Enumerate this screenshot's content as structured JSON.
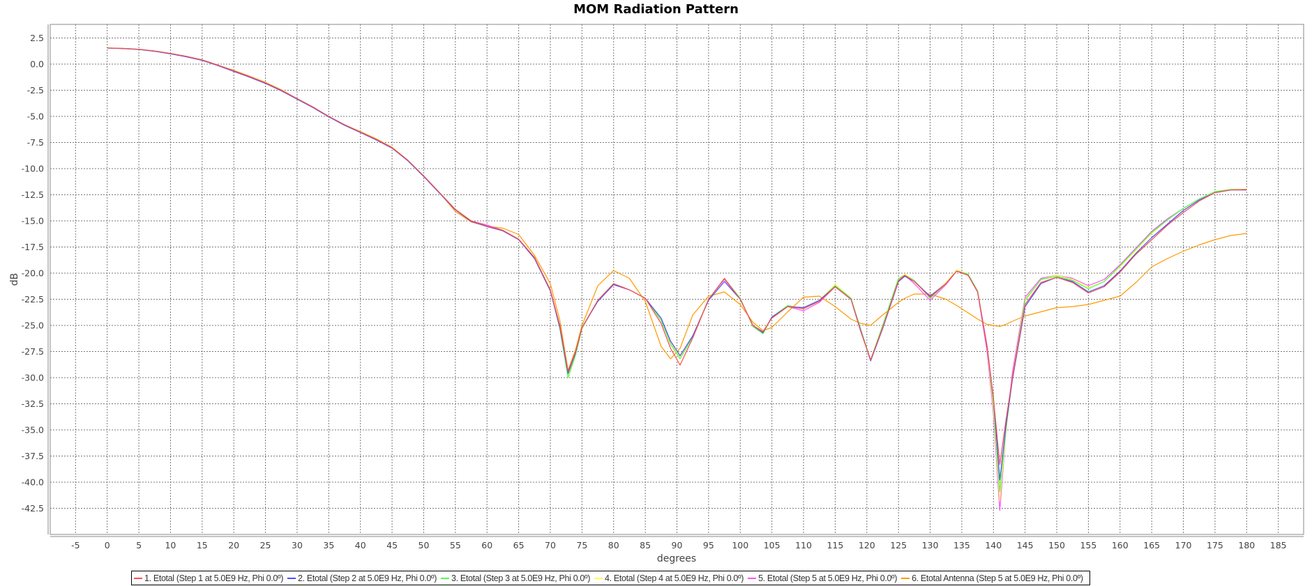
{
  "chart_data": {
    "type": "line",
    "title": "MOM Radiation Pattern",
    "xlabel": "degrees",
    "ylabel": "dB",
    "xlim": [
      -9,
      189
    ],
    "ylim": [
      -45,
      3.8
    ],
    "xticks": [
      -5,
      0,
      5,
      10,
      15,
      20,
      25,
      30,
      35,
      40,
      45,
      50,
      55,
      60,
      65,
      70,
      75,
      80,
      85,
      90,
      95,
      100,
      105,
      110,
      115,
      120,
      125,
      130,
      135,
      140,
      145,
      150,
      155,
      160,
      165,
      170,
      175,
      180,
      185
    ],
    "yticks": [
      "2.5",
      "0.0",
      "-2.5",
      "-5.0",
      "-7.5",
      "-10.0",
      "-12.5",
      "-15.0",
      "-17.5",
      "-20.0",
      "-22.5",
      "-25.0",
      "-27.5",
      "-30.0",
      "-32.5",
      "-35.0",
      "-37.5",
      "-40.0",
      "-42.5"
    ],
    "grid": true,
    "legend_position": "bottom",
    "x": [
      0,
      2.5,
      5,
      7.5,
      10,
      12.5,
      15,
      17.5,
      20,
      22.5,
      25,
      27.5,
      30,
      32.5,
      35,
      37.5,
      40,
      42.5,
      45,
      47.5,
      50,
      52.5,
      55,
      57.5,
      60,
      62.5,
      65,
      67.5,
      70,
      71.5,
      72.8,
      74,
      75,
      77.5,
      80,
      82.5,
      85,
      87.5,
      89,
      90.5,
      92.5,
      95,
      97.5,
      100,
      102,
      103.6,
      105,
      107.5,
      110,
      112.5,
      115,
      117.5,
      119,
      120.6,
      122.5,
      125,
      126,
      127.5,
      130,
      132.5,
      134.2,
      136,
      137.5,
      139,
      140,
      141,
      142,
      143,
      145,
      147.5,
      150,
      152.5,
      155,
      157.5,
      160,
      162.5,
      165,
      167.5,
      170,
      172.5,
      175,
      177.5,
      180
    ],
    "series": [
      {
        "name": "1. Etotal (Step 1 at 5.0E9 Hz, Phi 0.0º)",
        "color": "#ff4c4c",
        "values": [
          1.55,
          1.5,
          1.42,
          1.25,
          1.02,
          0.75,
          0.4,
          -0.1,
          -0.65,
          -1.2,
          -1.8,
          -2.5,
          -3.3,
          -4.1,
          -5.0,
          -5.8,
          -6.5,
          -7.2,
          -8.0,
          -9.2,
          -10.7,
          -12.3,
          -13.9,
          -15.0,
          -15.5,
          -15.9,
          -16.75,
          -18.5,
          -21.6,
          -25,
          -29.4,
          -27.5,
          -25.2,
          -22.6,
          -21.0,
          -21.6,
          -22.4,
          -24.8,
          -27.2,
          -28.8,
          -26.2,
          -22.5,
          -20.5,
          -22.5,
          -25,
          -25.6,
          -24.3,
          -23.2,
          -23.4,
          -22.7,
          -21.3,
          -22.5,
          -25.5,
          -28.3,
          -25.2,
          -20.7,
          -20.2,
          -20.8,
          -22.3,
          -21,
          -19.8,
          -20.2,
          -21.8,
          -27,
          -32,
          -38.3,
          -34,
          -30,
          -23,
          -20.9,
          -20.4,
          -20.9,
          -21.9,
          -21.3,
          -19.9,
          -18.2,
          -16.8,
          -15.4,
          -14.2,
          -13.1,
          -12.3,
          -12.05,
          -12.0
        ]
      },
      {
        "name": "2. Etotal (Step 2 at 5.0E9 Hz, Phi 0.0º)",
        "color": "#4c4cff",
        "values": [
          1.53,
          1.48,
          1.4,
          1.22,
          0.98,
          0.7,
          0.35,
          -0.15,
          -0.7,
          -1.25,
          -1.85,
          -2.55,
          -3.35,
          -4.15,
          -5.05,
          -5.85,
          -6.55,
          -7.25,
          -8.05,
          -9.25,
          -10.75,
          -12.35,
          -13.95,
          -15.05,
          -15.55,
          -15.95,
          -16.8,
          -18.6,
          -21.7,
          -25.2,
          -29.6,
          -27.6,
          -25.2,
          -22.7,
          -21.1,
          -21.6,
          -22.4,
          -24.3,
          -26.5,
          -27.9,
          -26.0,
          -22.6,
          -20.8,
          -22.5,
          -25,
          -25.7,
          -24.2,
          -23.2,
          -23.3,
          -22.6,
          -21.3,
          -22.5,
          -25.4,
          -28.4,
          -25.3,
          -20.8,
          -20.3,
          -20.8,
          -22.2,
          -21,
          -19.8,
          -20.2,
          -21.8,
          -27,
          -32,
          -39.8,
          -34.5,
          -30.2,
          -23.2,
          -21.0,
          -20.4,
          -20.8,
          -21.8,
          -21.2,
          -19.8,
          -18.1,
          -16.6,
          -15.3,
          -14.0,
          -13.0,
          -12.3,
          -12.05,
          -12.05
        ]
      },
      {
        "name": "3. Etotal (Step 3 at 5.0E9 Hz, Phi 0.0º)",
        "color": "#4cff4c",
        "values": [
          1.55,
          1.5,
          1.42,
          1.25,
          1.02,
          0.75,
          0.4,
          -0.1,
          -0.65,
          -1.2,
          -1.8,
          -2.5,
          -3.3,
          -4.1,
          -5.0,
          -5.8,
          -6.5,
          -7.2,
          -8.0,
          -9.2,
          -10.7,
          -12.3,
          -13.9,
          -15.0,
          -15.5,
          -15.9,
          -16.75,
          -18.5,
          -21.6,
          -25.3,
          -30.0,
          -27.8,
          -25.3,
          -22.6,
          -21.0,
          -21.6,
          -22.4,
          -24.5,
          -26.8,
          -28.2,
          -26.1,
          -22.5,
          -20.5,
          -22.4,
          -25.1,
          -25.8,
          -24.2,
          -23.1,
          -23.4,
          -22.6,
          -21.2,
          -22.4,
          -25.3,
          -28.3,
          -25.0,
          -20.5,
          -20.2,
          -20.7,
          -22.4,
          -21,
          -19.8,
          -20.1,
          -21.7,
          -27,
          -32.5,
          -40.9,
          -34.8,
          -30.0,
          -22.6,
          -20.6,
          -20.3,
          -20.7,
          -21.5,
          -20.8,
          -19.3,
          -17.7,
          -16.1,
          -14.9,
          -13.8,
          -12.9,
          -12.2,
          -12.0,
          -12.0
        ]
      },
      {
        "name": "4. Etotal (Step 4 at 5.0E9 Hz, Phi 0.0º)",
        "color": "#ffff4c",
        "values": [
          1.55,
          1.5,
          1.42,
          1.25,
          1.02,
          0.75,
          0.4,
          -0.1,
          -0.65,
          -1.2,
          -1.8,
          -2.5,
          -3.3,
          -4.1,
          -5.0,
          -5.8,
          -6.5,
          -7.2,
          -8.0,
          -9.2,
          -10.7,
          -12.3,
          -13.9,
          -15.0,
          -15.5,
          -15.9,
          -16.75,
          -18.5,
          -21.6,
          -25.2,
          -29.8,
          -27.7,
          -25.3,
          -22.6,
          -21.0,
          -21.6,
          -22.4,
          -24.5,
          -26.7,
          -28.0,
          -26.0,
          -22.5,
          -20.5,
          -22.5,
          -25,
          -25.6,
          -24.2,
          -23.1,
          -23.4,
          -22.6,
          -21.1,
          -22.4,
          -25.4,
          -28.3,
          -25.1,
          -20.6,
          -20.1,
          -20.7,
          -22.3,
          -20.9,
          -19.7,
          -20.1,
          -21.7,
          -27,
          -33,
          -41.8,
          -35,
          -30.0,
          -22.5,
          -20.6,
          -20.2,
          -20.6,
          -21.4,
          -20.8,
          -19.4,
          -17.8,
          -16.2,
          -14.9,
          -13.8,
          -12.9,
          -12.2,
          -12.0,
          -11.95
        ]
      },
      {
        "name": "5. Etotal (Step 5 at 5.0E9 Hz, Phi 0.0º)",
        "color": "#ff4cff",
        "values": [
          1.55,
          1.5,
          1.42,
          1.25,
          1.02,
          0.75,
          0.4,
          -0.1,
          -0.65,
          -1.2,
          -1.8,
          -2.5,
          -3.3,
          -4.1,
          -5.0,
          -5.8,
          -6.5,
          -7.2,
          -8.0,
          -9.2,
          -10.7,
          -12.3,
          -13.9,
          -15.0,
          -15.4,
          -15.9,
          -16.75,
          -18.5,
          -21.6,
          -25.2,
          -29.9,
          -27.7,
          -25.3,
          -22.6,
          -21.0,
          -21.6,
          -22.4,
          -24.5,
          -26.7,
          -28.0,
          -26.0,
          -22.5,
          -20.6,
          -22.5,
          -25,
          -25.6,
          -24.3,
          -23.2,
          -23.6,
          -22.8,
          -21.3,
          -22.5,
          -25.5,
          -28.3,
          -25.1,
          -20.6,
          -20.2,
          -21.0,
          -22.6,
          -21.1,
          -19.8,
          -20.2,
          -21.8,
          -27.5,
          -33.5,
          -42.7,
          -35,
          -29.5,
          -22.3,
          -20.5,
          -20.2,
          -20.5,
          -21.2,
          -20.6,
          -19.2,
          -17.6,
          -16.0,
          -14.8,
          -13.8,
          -12.9,
          -12.2,
          -12.0,
          -12.0
        ]
      },
      {
        "name": "6. Etotal Antenna (Step 5 at 5.0E9 Hz, Phi 0.0º)",
        "color": "#ff9900",
        "values": [
          1.55,
          1.5,
          1.42,
          1.25,
          1.02,
          0.75,
          0.4,
          -0.1,
          -0.6,
          -1.15,
          -1.75,
          -2.45,
          -3.3,
          -4.1,
          -5.0,
          -5.8,
          -6.45,
          -7.15,
          -7.95,
          -9.2,
          -10.7,
          -12.3,
          -14.1,
          -15.1,
          -15.5,
          -15.7,
          -16.3,
          -18.3,
          -21.0,
          -24.5,
          -29.3,
          -27.3,
          -25.0,
          -21.2,
          -19.75,
          -20.5,
          -22.7,
          -27.0,
          -28.2,
          -27.2,
          -24.0,
          -22.2,
          -21.8,
          -23.0,
          -24.7,
          -25.5,
          -25.2,
          -23.7,
          -22.3,
          -22.2,
          -23.2,
          -24.4,
          -24.8,
          -25.0,
          -24.0,
          -22.8,
          -22.4,
          -22.0,
          -22.0,
          -22.5,
          -23.1,
          -23.8,
          -24.4,
          -24.9,
          -25.0,
          -25.1,
          -24.9,
          -24.6,
          -24.1,
          -23.7,
          -23.3,
          -23.2,
          -23.0,
          -22.6,
          -22.2,
          -20.9,
          -19.4,
          -18.6,
          -17.9,
          -17.3,
          -16.8,
          -16.4,
          -16.2
        ]
      }
    ]
  }
}
